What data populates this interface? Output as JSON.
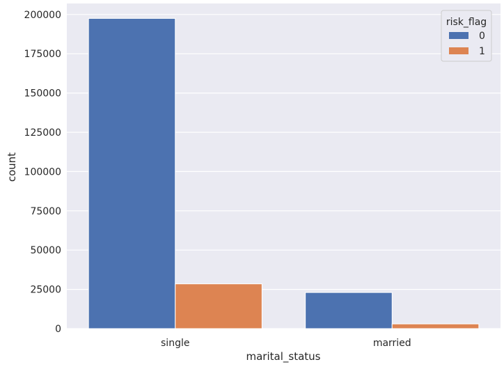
{
  "chart_data": {
    "type": "bar",
    "xlabel": "marital_status",
    "ylabel": "count",
    "categories": [
      "single",
      "married"
    ],
    "legend_title": "risk_flag",
    "legend_placement": "top-right",
    "grid": true,
    "ylim": [
      0,
      207000
    ],
    "yticks": [
      0,
      25000,
      50000,
      75000,
      100000,
      125000,
      150000,
      175000,
      200000
    ],
    "series": [
      {
        "name": "0",
        "color": "#4c72b0",
        "values": [
          197500,
          23000
        ]
      },
      {
        "name": "1",
        "color": "#dd8452",
        "values": [
          28500,
          3000
        ]
      }
    ],
    "background_color": "#eaeaf2"
  }
}
